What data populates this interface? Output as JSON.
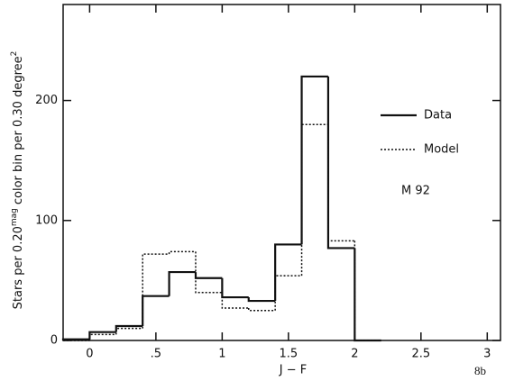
{
  "chart_data": {
    "type": "step-histogram",
    "x_label": "J − F",
    "y_label": [
      "Stars per 0.20",
      "mag",
      "color bin per 0.30 degree",
      "2"
    ],
    "annotations": [
      "M 92",
      "8b"
    ],
    "bins": [
      -0.2,
      0,
      0.2,
      0.4,
      0.6,
      0.8,
      1.0,
      1.2,
      1.4,
      1.6,
      1.8,
      2.0,
      2.2
    ],
    "series": [
      {
        "name": "Data",
        "color": "#111111",
        "linestyle": "solid",
        "values": [
          1,
          7,
          12,
          37,
          57,
          52,
          36,
          33,
          80,
          220,
          77,
          0
        ]
      },
      {
        "name": "Model",
        "color": "#111111",
        "linestyle": "dotted",
        "values": [
          0,
          5,
          10,
          72,
          74,
          40,
          27,
          25,
          54,
          180,
          83,
          0
        ]
      }
    ],
    "xlim": [
      -0.2,
      3.1
    ],
    "ylim": [
      0,
      280
    ],
    "xticks": [
      0,
      {
        "value": 0.5,
        "label": ".5"
      },
      1,
      1.5,
      2,
      2.5,
      3
    ],
    "yticks": [
      0,
      100,
      200
    ],
    "legend": "right"
  }
}
